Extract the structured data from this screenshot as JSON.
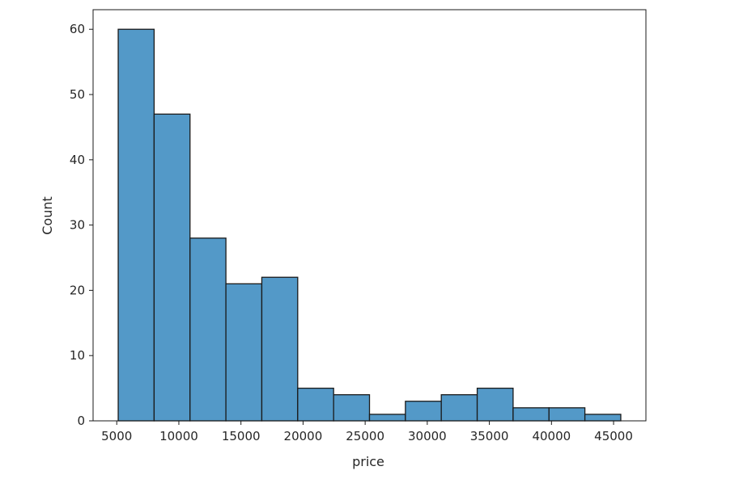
{
  "chart_data": {
    "type": "histogram",
    "xlabel": "price",
    "ylabel": "Count",
    "bar_color": "#5399c8",
    "edge_color": "#1a1a1a",
    "bins": [
      {
        "start": 5118,
        "end": 8009,
        "count": 60
      },
      {
        "start": 8009,
        "end": 10899,
        "count": 47
      },
      {
        "start": 10899,
        "end": 13789,
        "count": 28
      },
      {
        "start": 13789,
        "end": 16679,
        "count": 21
      },
      {
        "start": 16679,
        "end": 19569,
        "count": 22
      },
      {
        "start": 19569,
        "end": 22460,
        "count": 5
      },
      {
        "start": 22460,
        "end": 25350,
        "count": 4
      },
      {
        "start": 25350,
        "end": 28240,
        "count": 1
      },
      {
        "start": 28240,
        "end": 31130,
        "count": 3
      },
      {
        "start": 31130,
        "end": 34021,
        "count": 4
      },
      {
        "start": 34021,
        "end": 36911,
        "count": 5
      },
      {
        "start": 36911,
        "end": 39801,
        "count": 2
      },
      {
        "start": 39801,
        "end": 42691,
        "count": 2
      },
      {
        "start": 42691,
        "end": 45581,
        "count": 1
      }
    ],
    "xlim": [
      3095,
      47604
    ],
    "ylim": [
      0,
      63
    ],
    "xticks": [
      5000,
      10000,
      15000,
      20000,
      25000,
      30000,
      35000,
      40000,
      45000
    ],
    "xtick_labels": [
      "5000",
      "10000",
      "15000",
      "20000",
      "25000",
      "30000",
      "35000",
      "40000",
      "45000"
    ],
    "yticks": [
      0,
      10,
      20,
      30,
      40,
      50,
      60
    ],
    "ytick_labels": [
      "0",
      "10",
      "20",
      "30",
      "40",
      "50",
      "60"
    ],
    "grid": false
  }
}
